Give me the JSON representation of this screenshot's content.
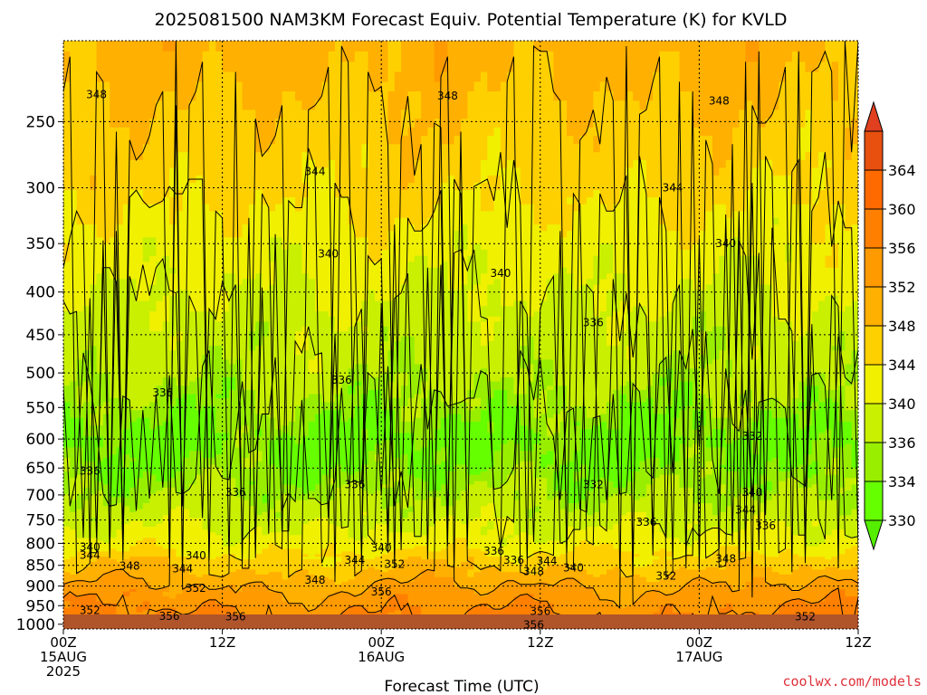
{
  "chart_data": {
    "type": "heatmap",
    "title": "2025081500 NAM3KM Forecast Equiv. Potential Temperature (K) for KVLD",
    "xlabel": "Forecast Time (UTC)",
    "ylabel": "",
    "credit": "coolwx.com/models",
    "x_ticks": [
      {
        "hour": 0,
        "lines": [
          "00Z",
          "15AUG",
          "2025"
        ]
      },
      {
        "hour": 12,
        "lines": [
          "12Z"
        ]
      },
      {
        "hour": 24,
        "lines": [
          "00Z",
          "16AUG"
        ]
      },
      {
        "hour": 36,
        "lines": [
          "12Z"
        ]
      },
      {
        "hour": 48,
        "lines": [
          "00Z",
          "17AUG"
        ]
      },
      {
        "hour": 60,
        "lines": [
          "12Z"
        ]
      }
    ],
    "xlim": [
      0,
      60
    ],
    "y_ticks": [
      250,
      300,
      350,
      400,
      450,
      500,
      550,
      600,
      650,
      700,
      750,
      800,
      850,
      900,
      950,
      1000
    ],
    "ylim": [
      200,
      1013
    ],
    "y_scale": "log-pressure",
    "grid": true,
    "colorbar": {
      "units": "K",
      "levels": [
        330,
        334,
        336,
        340,
        344,
        348,
        352,
        356,
        360,
        364
      ],
      "colors": [
        "#66ff00",
        "#99ee00",
        "#c8f000",
        "#f0f000",
        "#ffd000",
        "#ffb000",
        "#ff9a00",
        "#ff8000",
        "#ff6a00",
        "#e85010"
      ],
      "under_color": "#55ee00",
      "over_color": "#e04020"
    },
    "ground_color": "#b0542a",
    "profiles": [
      {
        "p": 200,
        "v": 350
      },
      {
        "p": 250,
        "v": 347
      },
      {
        "p": 300,
        "v": 345
      },
      {
        "p": 350,
        "v": 342
      },
      {
        "p": 400,
        "v": 340
      },
      {
        "p": 450,
        "v": 338
      },
      {
        "p": 500,
        "v": 337
      },
      {
        "p": 550,
        "v": 335
      },
      {
        "p": 600,
        "v": 333
      },
      {
        "p": 650,
        "v": 334
      },
      {
        "p": 700,
        "v": 336
      },
      {
        "p": 750,
        "v": 339
      },
      {
        "p": 800,
        "v": 342
      },
      {
        "p": 850,
        "v": 347
      },
      {
        "p": 900,
        "v": 352
      },
      {
        "p": 950,
        "v": 355
      },
      {
        "p": 1000,
        "v": 357
      }
    ],
    "contour_labels": [
      {
        "t": 2.5,
        "p": 232,
        "text": "348"
      },
      {
        "t": 29,
        "p": 233,
        "text": "348"
      },
      {
        "t": 49.5,
        "p": 236,
        "text": "348"
      },
      {
        "t": 19,
        "p": 287,
        "text": "344"
      },
      {
        "t": 46,
        "p": 300,
        "text": "344"
      },
      {
        "t": 20,
        "p": 360,
        "text": "340"
      },
      {
        "t": 33,
        "p": 380,
        "text": "340"
      },
      {
        "t": 50,
        "p": 350,
        "text": "340"
      },
      {
        "t": 40,
        "p": 435,
        "text": "336"
      },
      {
        "t": 21,
        "p": 510,
        "text": "336"
      },
      {
        "t": 7.5,
        "p": 528,
        "text": "336"
      },
      {
        "t": 52,
        "p": 595,
        "text": "332"
      },
      {
        "t": 2,
        "p": 655,
        "text": "336"
      },
      {
        "t": 13,
        "p": 695,
        "text": "336"
      },
      {
        "t": 22,
        "p": 680,
        "text": "336"
      },
      {
        "t": 40,
        "p": 680,
        "text": "332"
      },
      {
        "t": 52,
        "p": 695,
        "text": "340"
      },
      {
        "t": 51.5,
        "p": 730,
        "text": "344"
      },
      {
        "t": 53,
        "p": 762,
        "text": "336"
      },
      {
        "t": 44,
        "p": 755,
        "text": "336"
      },
      {
        "t": 2,
        "p": 808,
        "text": "340"
      },
      {
        "t": 2,
        "p": 827,
        "text": "344"
      },
      {
        "t": 10,
        "p": 828,
        "text": "340"
      },
      {
        "t": 5,
        "p": 852,
        "text": "348"
      },
      {
        "t": 9,
        "p": 858,
        "text": "344"
      },
      {
        "t": 24,
        "p": 810,
        "text": "340"
      },
      {
        "t": 22,
        "p": 838,
        "text": "344"
      },
      {
        "t": 25,
        "p": 847,
        "text": "352"
      },
      {
        "t": 32.5,
        "p": 817,
        "text": "336"
      },
      {
        "t": 34,
        "p": 838,
        "text": "336"
      },
      {
        "t": 36.5,
        "p": 840,
        "text": "344"
      },
      {
        "t": 38.5,
        "p": 856,
        "text": "340"
      },
      {
        "t": 35.5,
        "p": 865,
        "text": "348"
      },
      {
        "t": 19,
        "p": 885,
        "text": "348"
      },
      {
        "t": 50,
        "p": 835,
        "text": "348"
      },
      {
        "t": 45.5,
        "p": 875,
        "text": "352"
      },
      {
        "t": 10,
        "p": 905,
        "text": "352"
      },
      {
        "t": 24,
        "p": 915,
        "text": "356"
      },
      {
        "t": 2,
        "p": 962,
        "text": "352"
      },
      {
        "t": 8,
        "p": 978,
        "text": "356"
      },
      {
        "t": 13,
        "p": 980,
        "text": "356"
      },
      {
        "t": 36,
        "p": 965,
        "text": "356"
      },
      {
        "t": 35.5,
        "p": 1002,
        "text": "356"
      },
      {
        "t": 56,
        "p": 980,
        "text": "352"
      }
    ]
  }
}
